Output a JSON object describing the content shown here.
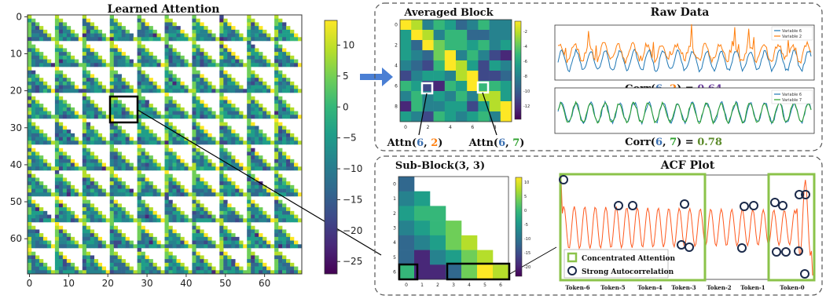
{
  "colors": {
    "viridis": [
      "#440154",
      "#482878",
      "#3e4989",
      "#31688e",
      "#26828e",
      "#1f9e89",
      "#35b779",
      "#6ece58",
      "#b5de2b",
      "#fde725"
    ],
    "green_box": "#8bc34a",
    "blue_series": "#1f77b4",
    "orange_series": "#ff7f0e",
    "green_series": "#2ca02c",
    "acf_line": "#ff5a1f",
    "circle": "#1b2a4a",
    "arrow": "#4a7fd4",
    "token_colors": [
      "#6fbf3a",
      "#e8d84a",
      "#9ccc65",
      "#3a5a9a",
      "#6a3d9a",
      "#5b3b9a",
      "#2ca58d"
    ]
  },
  "chart_data": [
    {
      "type": "heatmap",
      "title": "Learned Attention",
      "size": 70,
      "block": 7,
      "xticks": [
        "0",
        "10",
        "20",
        "30",
        "40",
        "50",
        "60"
      ],
      "yticks": [
        "0",
        "10",
        "20",
        "30",
        "40",
        "50",
        "60"
      ],
      "colorbar": {
        "range": [
          -27,
          14
        ],
        "ticks": [
          "10",
          "5",
          "0",
          "−5",
          "−10",
          "−15",
          "−20",
          "−25"
        ]
      },
      "highlight_block": [
        3,
        3
      ]
    },
    {
      "type": "heatmap",
      "title": "Averaged Block",
      "size": 10,
      "xticks": [
        "0",
        "2",
        "4",
        "6",
        "8"
      ],
      "yticks": [
        "0",
        "2",
        "4",
        "6",
        "8"
      ],
      "colorbar": {
        "ticks": [
          "-2",
          "-4",
          "-6",
          "-8",
          "-10",
          "-12"
        ]
      },
      "annotations": [
        {
          "prefix": "Attn(",
          "a": "6",
          "sep": ", ",
          "b": "2",
          "suffix": ")"
        },
        {
          "prefix": "Attn(",
          "a": "6",
          "sep": ", ",
          "b": "7",
          "suffix": ")"
        }
      ]
    },
    {
      "type": "line",
      "title": "Raw Data",
      "panels": [
        {
          "series": [
            {
              "name": "Variable 6"
            },
            {
              "name": "Variable 2"
            }
          ],
          "caption": {
            "prefix": "Corr(",
            "a": "6",
            "sep": ", ",
            "b": "2",
            "suffix": ") = ",
            "value": "0.64"
          }
        },
        {
          "series": [
            {
              "name": "Variable 6"
            },
            {
              "name": "Variable 7"
            }
          ],
          "caption": {
            "prefix": "Corr(",
            "a": "6",
            "sep": ", ",
            "b": "7",
            "suffix": ") = ",
            "value": "0.78"
          }
        }
      ]
    },
    {
      "type": "heatmap",
      "title": "Sub-Block(3, 3)",
      "size": 7,
      "xticks": [
        "0",
        "1",
        "2",
        "3",
        "4",
        "5",
        "6"
      ],
      "yticks": [
        "0",
        "1",
        "2",
        "3",
        "4",
        "5",
        "6"
      ],
      "colorbar": {
        "ticks": [
          "10",
          "5",
          "0",
          "-5",
          "-10",
          "-15",
          "-20"
        ]
      }
    },
    {
      "type": "line",
      "title": "ACF Plot",
      "legend": [
        "Concentrated Attention",
        "Strong Autocorrelation"
      ],
      "tokens": [
        "Token-6",
        "Token-5",
        "Token-4",
        "Token-3",
        "Token-2",
        "Token-1",
        "Token-0"
      ]
    }
  ]
}
